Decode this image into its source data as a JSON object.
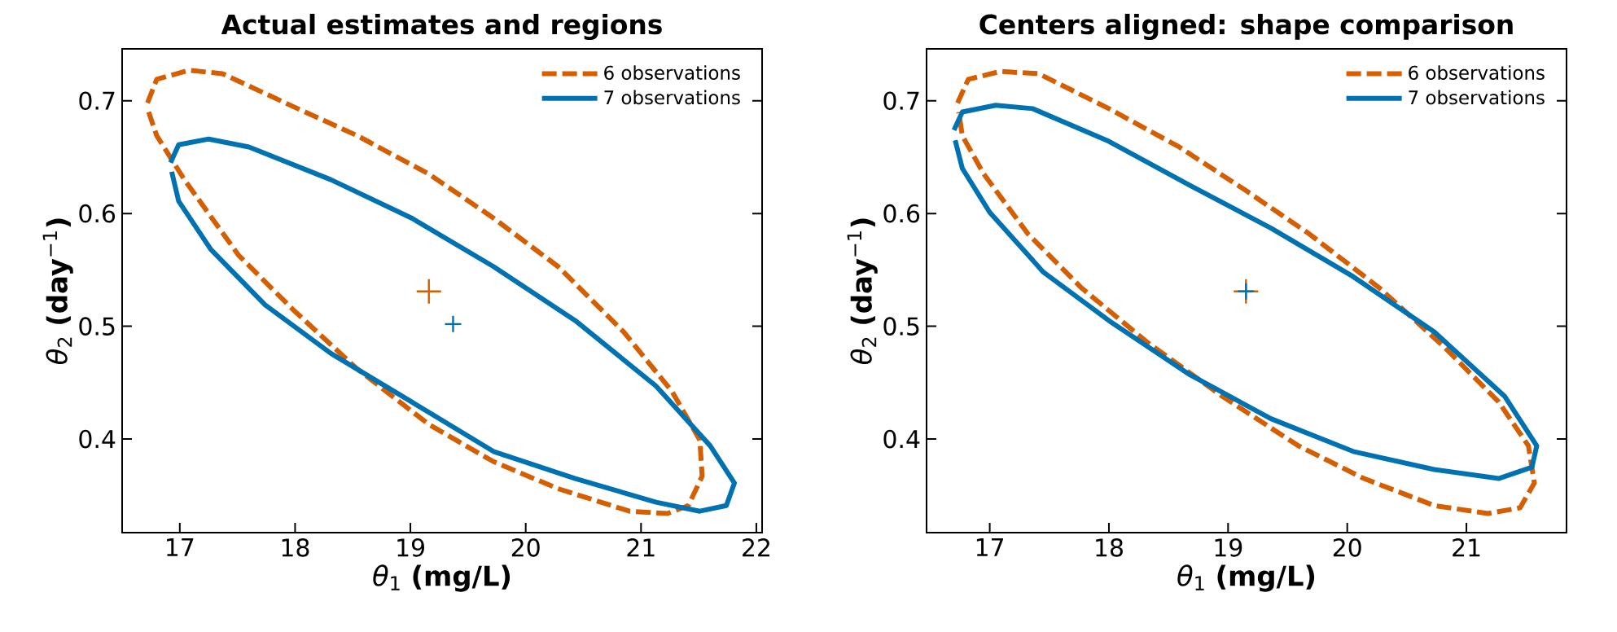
{
  "chart_data": [
    {
      "type": "line",
      "title": "Actual estimates and regions",
      "xlabel": "*θ*$_{1}$ **(mg/L)**",
      "ylabel": "*θ*$_{2}$ **(day**$^{−1}$**)**",
      "xlim": [
        16.5,
        22.05
      ],
      "ylim": [
        0.317,
        0.746
      ],
      "xticks": [
        17,
        18,
        19,
        20,
        21,
        22
      ],
      "yticks": [
        0.4,
        0.5,
        0.6,
        0.7
      ],
      "legend": "top right",
      "series": [
        {
          "name": "6 observations",
          "color": "#d55e00",
          "line_style": "dashed",
          "x": [
            16.72,
            16.8,
            17.08,
            17.37,
            17.98,
            18.54,
            19.16,
            19.72,
            20.28,
            20.85,
            21.27,
            21.51,
            21.53,
            21.41,
            21.23,
            20.9,
            20.28,
            19.72,
            19.16,
            18.54,
            17.98,
            17.51,
            17.04,
            16.8,
            16.73
          ],
          "values": [
            0.698,
            0.719,
            0.727,
            0.724,
            0.695,
            0.669,
            0.635,
            0.596,
            0.553,
            0.495,
            0.442,
            0.399,
            0.367,
            0.341,
            0.334,
            0.336,
            0.356,
            0.38,
            0.413,
            0.462,
            0.515,
            0.563,
            0.63,
            0.669,
            0.69
          ]
        },
        {
          "name": "7 observations",
          "color": "#0072b2",
          "line_style": "solid",
          "x": [
            16.92,
            16.99,
            17.25,
            17.6,
            18.31,
            19.01,
            19.72,
            20.43,
            21.13,
            21.6,
            21.81,
            21.74,
            21.51,
            21.13,
            20.43,
            19.72,
            19.01,
            18.31,
            17.74,
            17.27,
            16.99,
            16.93
          ],
          "values": [
            0.645,
            0.661,
            0.666,
            0.659,
            0.63,
            0.596,
            0.553,
            0.505,
            0.447,
            0.394,
            0.361,
            0.341,
            0.336,
            0.344,
            0.365,
            0.389,
            0.433,
            0.476,
            0.519,
            0.568,
            0.611,
            0.637
          ]
        },
        {
          "type": "scatter",
          "marker": "cross",
          "color": "#d55e00",
          "x": [
            19.16
          ],
          "values": [
            0.531
          ]
        },
        {
          "type": "scatter",
          "marker": "cross",
          "color": "#0072b2",
          "x": [
            19.37
          ],
          "values": [
            0.502
          ]
        }
      ]
    },
    {
      "type": "line",
      "title": "Centers aligned: shape comparison",
      "xlabel": "*θ*$_{1}$ **(mg/L)**",
      "ylabel": "*θ*$_{2}$ **(day**$^{−1}$**)**",
      "xlim": [
        16.47,
        21.84
      ],
      "ylim": [
        0.317,
        0.746
      ],
      "xticks": [
        17,
        18,
        19,
        20,
        21
      ],
      "yticks": [
        0.4,
        0.5,
        0.6,
        0.7
      ],
      "legend": "top right",
      "series": [
        {
          "name": "6 observations",
          "color": "#d55e00",
          "line_style": "dashed",
          "x": [
            16.73,
            16.82,
            17.09,
            17.41,
            18.0,
            18.59,
            19.14,
            19.68,
            20.27,
            20.82,
            21.27,
            21.52,
            21.57,
            21.45,
            21.18,
            20.73,
            20.14,
            19.59,
            18.95,
            18.32,
            17.77,
            17.32,
            16.95,
            16.77,
            16.74
          ],
          "values": [
            0.698,
            0.719,
            0.726,
            0.724,
            0.693,
            0.659,
            0.621,
            0.582,
            0.534,
            0.481,
            0.433,
            0.394,
            0.361,
            0.339,
            0.334,
            0.341,
            0.365,
            0.394,
            0.438,
            0.486,
            0.534,
            0.582,
            0.635,
            0.669,
            0.69
          ]
        },
        {
          "name": "7 observations",
          "color": "#0072b2",
          "line_style": "solid",
          "x": [
            16.7,
            16.77,
            17.05,
            17.36,
            18.0,
            18.68,
            19.36,
            20.05,
            20.73,
            21.32,
            21.59,
            21.55,
            21.27,
            20.73,
            20.05,
            19.36,
            18.68,
            18.0,
            17.45,
            17.0,
            16.77,
            16.71
          ],
          "values": [
            0.674,
            0.69,
            0.696,
            0.693,
            0.664,
            0.625,
            0.587,
            0.544,
            0.495,
            0.438,
            0.394,
            0.375,
            0.365,
            0.373,
            0.389,
            0.418,
            0.457,
            0.505,
            0.548,
            0.601,
            0.64,
            0.665
          ]
        },
        {
          "type": "scatter",
          "marker": "cross",
          "color": "#d55e00",
          "x": [
            19.15
          ],
          "values": [
            0.531
          ]
        },
        {
          "type": "scatter",
          "marker": "cross",
          "color": "#0072b2",
          "x": [
            19.15
          ],
          "values": [
            0.531
          ]
        }
      ]
    }
  ]
}
